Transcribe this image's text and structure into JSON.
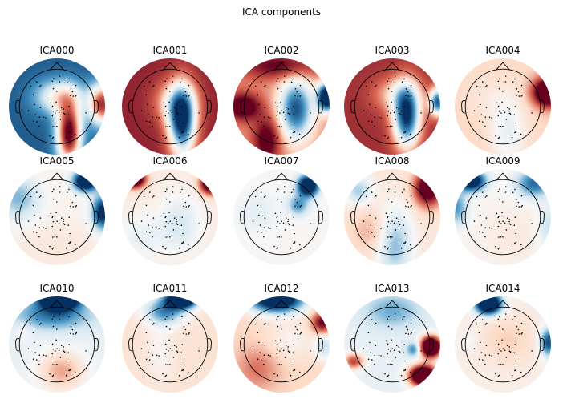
{
  "chart_data": {
    "type": "heatmap",
    "title": "ICA components",
    "colormap": "RdBu_r",
    "colors": {
      "deep_red": "#67001f",
      "red": "#d6604d",
      "pale_red": "#fddbc7",
      "neutral": "#f7f7f7",
      "pale_blue": "#d1e5f0",
      "blue": "#4393c3",
      "deep_blue": "#053061",
      "outline": "#000000"
    },
    "components": [
      {
        "label": "ICA000",
        "background": -0.82,
        "blobs": [
          {
            "x": 0.25,
            "y": -0.55,
            "sx": 0.18,
            "sy": 0.45,
            "v": 1.9
          },
          {
            "x": 0.95,
            "y": 0.05,
            "sx": 0.2,
            "sy": 0.3,
            "v": 1.6
          },
          {
            "x": 0.05,
            "y": 0.2,
            "sx": 0.35,
            "sy": 0.25,
            "v": 0.9
          }
        ]
      },
      {
        "label": "ICA001",
        "background": 0.85,
        "blobs": [
          {
            "x": 0.25,
            "y": -0.3,
            "sx": 0.2,
            "sy": 0.5,
            "v": -1.9
          },
          {
            "x": 0.1,
            "y": 0.1,
            "sx": 0.3,
            "sy": 0.3,
            "v": -0.6
          }
        ]
      },
      {
        "label": "ICA002",
        "background": 0.45,
        "blobs": [
          {
            "x": 0.3,
            "y": -0.05,
            "sx": 0.25,
            "sy": 0.45,
            "v": -1.3
          },
          {
            "x": 0.95,
            "y": 0.2,
            "sx": 0.14,
            "sy": 0.2,
            "v": -2.0
          },
          {
            "x": -0.8,
            "y": 0.0,
            "sx": 0.25,
            "sy": 0.2,
            "v": 0.8
          },
          {
            "x": 0.0,
            "y": 0.85,
            "sx": 0.6,
            "sy": 0.2,
            "v": 0.6
          },
          {
            "x": -0.3,
            "y": -0.7,
            "sx": 0.2,
            "sy": 0.35,
            "v": 0.7
          }
        ]
      },
      {
        "label": "ICA003",
        "background": 0.8,
        "blobs": [
          {
            "x": 0.3,
            "y": -0.2,
            "sx": 0.2,
            "sy": 0.45,
            "v": -1.8
          },
          {
            "x": 0.95,
            "y": 0.1,
            "sx": 0.12,
            "sy": 0.2,
            "v": -1.6
          },
          {
            "x": 0.1,
            "y": 0.25,
            "sx": 0.35,
            "sy": 0.25,
            "v": -0.5
          }
        ]
      },
      {
        "label": "ICA004",
        "background": 0.25,
        "blobs": [
          {
            "x": 0.95,
            "y": 0.3,
            "sx": 0.22,
            "sy": 0.2,
            "v": 1.5
          },
          {
            "x": 0.1,
            "y": -0.5,
            "sx": 0.25,
            "sy": 0.5,
            "v": -0.35
          },
          {
            "x": -0.3,
            "y": 0.2,
            "sx": 0.35,
            "sy": 0.3,
            "v": -0.1
          }
        ]
      },
      {
        "label": "ICA005",
        "background": 0.05,
        "blobs": [
          {
            "x": 0.6,
            "y": 0.75,
            "sx": 0.18,
            "sy": 0.15,
            "v": -1.6
          },
          {
            "x": 0.95,
            "y": 0.1,
            "sx": 0.15,
            "sy": 0.25,
            "v": -1.2
          },
          {
            "x": -0.8,
            "y": 0.4,
            "sx": 0.3,
            "sy": 0.3,
            "v": -0.5
          },
          {
            "x": 0.0,
            "y": -0.6,
            "sx": 0.6,
            "sy": 0.3,
            "v": 0.1
          }
        ]
      },
      {
        "label": "ICA006",
        "background": 0.1,
        "blobs": [
          {
            "x": -0.75,
            "y": 0.8,
            "sx": 0.16,
            "sy": 0.13,
            "v": 1.6
          },
          {
            "x": 0.85,
            "y": 0.7,
            "sx": 0.15,
            "sy": 0.15,
            "v": 1.5
          },
          {
            "x": 0.2,
            "y": -0.15,
            "sx": 0.3,
            "sy": 0.4,
            "v": -0.3
          },
          {
            "x": -0.6,
            "y": -0.4,
            "sx": 0.3,
            "sy": 0.3,
            "v": -0.2
          }
        ]
      },
      {
        "label": "ICA007",
        "background": 0.02,
        "blobs": [
          {
            "x": 0.55,
            "y": 0.65,
            "sx": 0.15,
            "sy": 0.15,
            "v": -1.6
          },
          {
            "x": 0.35,
            "y": 0.25,
            "sx": 0.15,
            "sy": 0.15,
            "v": -0.6
          },
          {
            "x": -0.5,
            "y": 0.1,
            "sx": 0.3,
            "sy": 0.3,
            "v": -0.15
          }
        ]
      },
      {
        "label": "ICA008",
        "background": 0.15,
        "blobs": [
          {
            "x": 0.75,
            "y": 0.6,
            "sx": 0.2,
            "sy": 0.25,
            "v": 1.2
          },
          {
            "x": 0.05,
            "y": -0.55,
            "sx": 0.25,
            "sy": 0.5,
            "v": -0.6
          },
          {
            "x": -0.7,
            "y": 0.55,
            "sx": 0.2,
            "sy": 0.2,
            "v": -0.5
          },
          {
            "x": -0.4,
            "y": -0.3,
            "sx": 0.3,
            "sy": 0.3,
            "v": 0.25
          }
        ]
      },
      {
        "label": "ICA009",
        "background": 0.03,
        "blobs": [
          {
            "x": -0.65,
            "y": 0.75,
            "sx": 0.2,
            "sy": 0.15,
            "v": -1.4
          },
          {
            "x": 0.65,
            "y": 0.7,
            "sx": 0.25,
            "sy": 0.2,
            "v": -0.8
          },
          {
            "x": -0.95,
            "y": 0.2,
            "sx": 0.15,
            "sy": 0.25,
            "v": -0.6
          },
          {
            "x": 0.95,
            "y": -0.2,
            "sx": 0.15,
            "sy": 0.3,
            "v": -0.3
          },
          {
            "x": 0.2,
            "y": -0.4,
            "sx": 0.4,
            "sy": 0.4,
            "v": 0.1
          }
        ]
      },
      {
        "label": "ICA010",
        "background": -0.1,
        "blobs": [
          {
            "x": 0.05,
            "y": 0.95,
            "sx": 0.28,
            "sy": 0.15,
            "v": -2.0
          },
          {
            "x": -0.1,
            "y": 0.6,
            "sx": 0.55,
            "sy": 0.2,
            "v": -0.6
          },
          {
            "x": 0.1,
            "y": -0.55,
            "sx": 0.35,
            "sy": 0.3,
            "v": 0.5
          },
          {
            "x": -0.7,
            "y": 0.3,
            "sx": 0.15,
            "sy": 0.15,
            "v": 0.15
          }
        ]
      },
      {
        "label": "ICA011",
        "background": 0.18,
        "blobs": [
          {
            "x": 0.25,
            "y": 0.95,
            "sx": 0.22,
            "sy": 0.13,
            "v": -2.0
          },
          {
            "x": -0.1,
            "y": 0.7,
            "sx": 0.3,
            "sy": 0.2,
            "v": -0.8
          },
          {
            "x": -0.2,
            "y": -0.1,
            "sx": 0.2,
            "sy": 0.5,
            "v": -0.15
          }
        ]
      },
      {
        "label": "ICA012",
        "background": 0.25,
        "blobs": [
          {
            "x": -0.1,
            "y": 0.95,
            "sx": 0.4,
            "sy": 0.2,
            "v": -1.8
          },
          {
            "x": 0.85,
            "y": 0.45,
            "sx": 0.15,
            "sy": 0.15,
            "v": 0.8
          },
          {
            "x": 0.9,
            "y": -0.05,
            "sx": 0.15,
            "sy": 0.2,
            "v": -0.5
          },
          {
            "x": 0.2,
            "y": 0.1,
            "sx": 0.35,
            "sy": 0.3,
            "v": -0.2
          },
          {
            "x": -0.5,
            "y": -0.5,
            "sx": 0.3,
            "sy": 0.3,
            "v": 0.3
          }
        ]
      },
      {
        "label": "ICA013",
        "background": -0.1,
        "blobs": [
          {
            "x": 0.8,
            "y": -0.05,
            "sx": 0.15,
            "sy": 0.15,
            "v": 2.0
          },
          {
            "x": 0.65,
            "y": -0.65,
            "sx": 0.2,
            "sy": 0.15,
            "v": 2.0
          },
          {
            "x": -0.8,
            "y": -0.35,
            "sx": 0.15,
            "sy": 0.12,
            "v": 0.8
          },
          {
            "x": 0.0,
            "y": 0.7,
            "sx": 0.4,
            "sy": 0.25,
            "v": -0.4
          },
          {
            "x": 0.45,
            "y": -0.1,
            "sx": 0.1,
            "sy": 0.1,
            "v": -0.6
          }
        ]
      },
      {
        "label": "ICA014",
        "background": 0.08,
        "blobs": [
          {
            "x": -0.3,
            "y": 0.85,
            "sx": 0.18,
            "sy": 0.15,
            "v": -2.0
          },
          {
            "x": 0.95,
            "y": 0.05,
            "sx": 0.12,
            "sy": 0.2,
            "v": -1.0
          },
          {
            "x": 0.1,
            "y": 0.1,
            "sx": 0.4,
            "sy": 0.35,
            "v": 0.2
          },
          {
            "x": -0.7,
            "y": 0.1,
            "sx": 0.15,
            "sy": 0.15,
            "v": -0.1
          }
        ]
      }
    ]
  }
}
